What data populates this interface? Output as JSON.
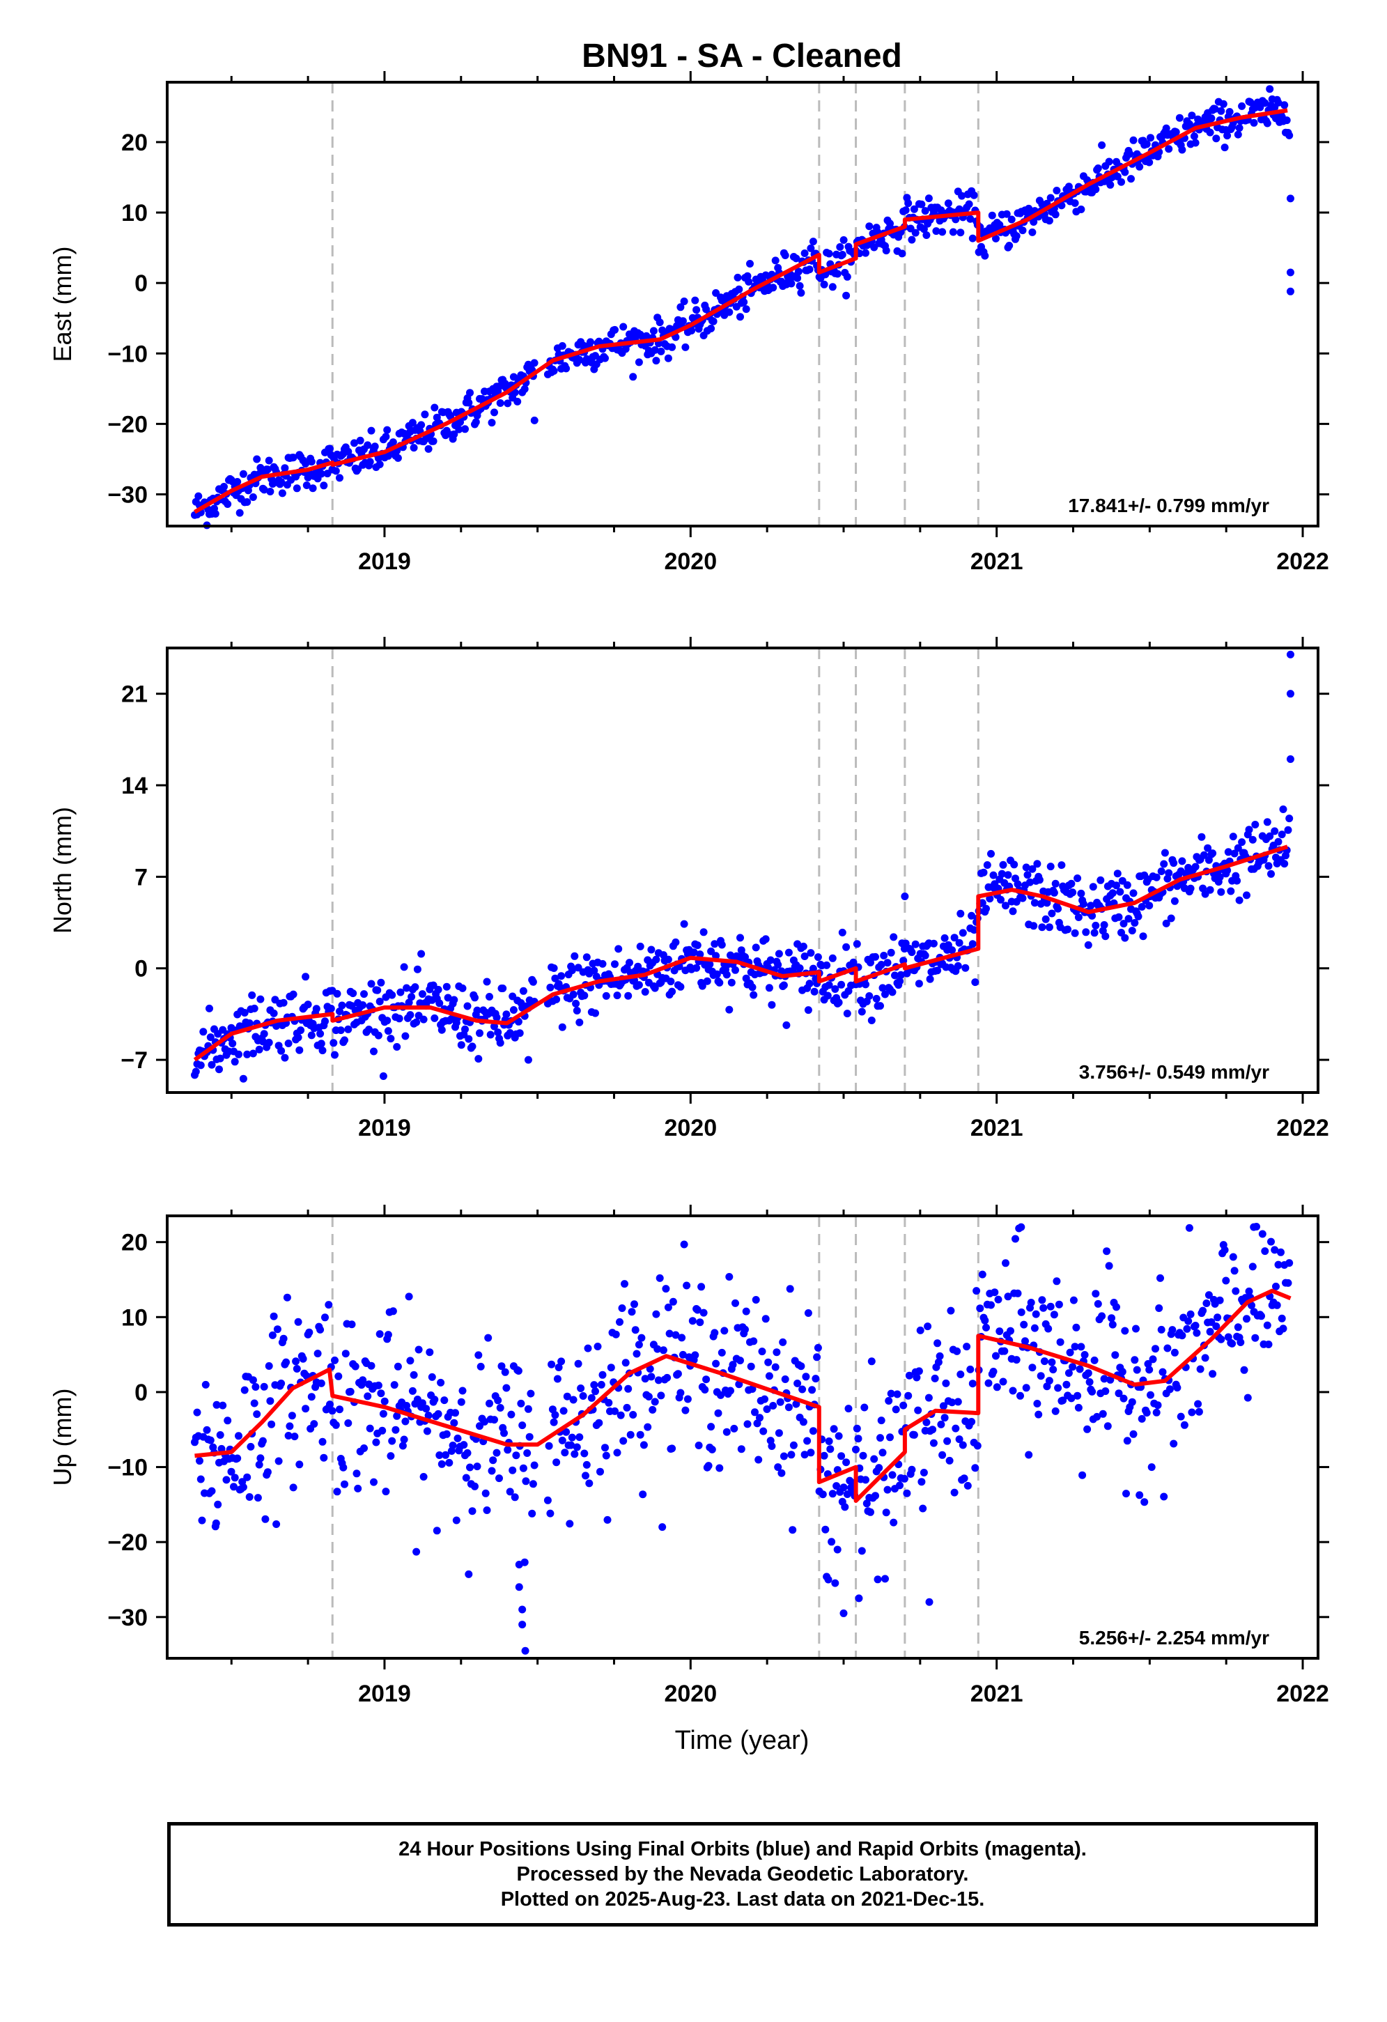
{
  "title": "BN91  - SA - Cleaned",
  "xlabel": "Time (year)",
  "footer": {
    "line1": "24 Hour Positions Using Final Orbits (blue) and Rapid Orbits (magenta).",
    "line2": "Processed by the Nevada Geodetic Laboratory.",
    "line3": "Plotted on 2025-Aug-23. Last data on 2021-Dec-15."
  },
  "colors": {
    "points": "#0000ff",
    "model": "#ff0000",
    "steps": "#bbbbbb"
  },
  "chart_data": [
    {
      "type": "scatter",
      "name": "east",
      "ylabel": "East (mm)",
      "rate_label": "17.841+/- 0.799 mm/yr",
      "xlim": [
        2018.29,
        2022.05
      ],
      "ylim": [
        -34.5,
        28.5
      ],
      "xticks": [
        2019,
        2020,
        2021,
        2022
      ],
      "yticks": [
        -30,
        -20,
        -10,
        0,
        10,
        20
      ],
      "model": [
        [
          2018.38,
          -32.5
        ],
        [
          2018.5,
          -29.5
        ],
        [
          2018.6,
          -27.5
        ],
        [
          2018.75,
          -26.5
        ],
        [
          2018.83,
          -25.5
        ],
        [
          2018.83,
          -25.8
        ],
        [
          2019.0,
          -24.0
        ],
        [
          2019.2,
          -20.0
        ],
        [
          2019.4,
          -15.5
        ],
        [
          2019.55,
          -11.0
        ],
        [
          2019.7,
          -9.0
        ],
        [
          2019.9,
          -8.0
        ],
        [
          2020.0,
          -6.0
        ],
        [
          2020.2,
          -1.0
        ],
        [
          2020.42,
          4.0
        ],
        [
          2020.42,
          1.5
        ],
        [
          2020.54,
          3.5
        ],
        [
          2020.54,
          5.5
        ],
        [
          2020.7,
          8.0
        ],
        [
          2020.7,
          9.0
        ],
        [
          2020.94,
          10.0
        ],
        [
          2020.94,
          6.0
        ],
        [
          2021.1,
          9.0
        ],
        [
          2021.3,
          14.0
        ],
        [
          2021.5,
          18.5
        ],
        [
          2021.65,
          22.0
        ],
        [
          2021.8,
          23.5
        ],
        [
          2021.95,
          24.5
        ]
      ],
      "outliers": [
        [
          2021.96,
          12.0
        ],
        [
          2021.96,
          1.5
        ],
        [
          2021.96,
          -1.2
        ],
        [
          2019.49,
          -19.5
        ]
      ],
      "scatter": 1.4
    },
    {
      "type": "scatter",
      "name": "north",
      "ylabel": "North (mm)",
      "rate_label": "3.756+/- 0.549 mm/yr",
      "xlim": [
        2018.29,
        2022.05
      ],
      "ylim": [
        -9.5,
        24.5
      ],
      "xticks": [
        2019,
        2020,
        2021,
        2022
      ],
      "yticks": [
        -7,
        0,
        7,
        14,
        21
      ],
      "model": [
        [
          2018.38,
          -7.0
        ],
        [
          2018.5,
          -5.0
        ],
        [
          2018.65,
          -4.0
        ],
        [
          2018.83,
          -3.5
        ],
        [
          2018.83,
          -4.0
        ],
        [
          2019.0,
          -3.0
        ],
        [
          2019.15,
          -3.0
        ],
        [
          2019.3,
          -4.0
        ],
        [
          2019.4,
          -4.2
        ],
        [
          2019.55,
          -2.0
        ],
        [
          2019.7,
          -1.0
        ],
        [
          2019.85,
          -0.5
        ],
        [
          2020.0,
          0.8
        ],
        [
          2020.15,
          0.5
        ],
        [
          2020.3,
          -0.6
        ],
        [
          2020.42,
          -0.3
        ],
        [
          2020.42,
          -1.0
        ],
        [
          2020.54,
          0.0
        ],
        [
          2020.54,
          -1.0
        ],
        [
          2020.7,
          0.3
        ],
        [
          2020.7,
          0.0
        ],
        [
          2020.94,
          1.5
        ],
        [
          2020.94,
          5.5
        ],
        [
          2021.05,
          6.0
        ],
        [
          2021.15,
          5.5
        ],
        [
          2021.3,
          4.3
        ],
        [
          2021.45,
          5.0
        ],
        [
          2021.6,
          6.8
        ],
        [
          2021.75,
          7.8
        ],
        [
          2021.95,
          9.3
        ]
      ],
      "outliers": [
        [
          2021.96,
          24.0
        ],
        [
          2021.96,
          21.0
        ],
        [
          2021.96,
          16.0
        ],
        [
          2020.7,
          5.5
        ],
        [
          2019.47,
          -7.0
        ]
      ],
      "scatter": 1.3
    },
    {
      "type": "scatter",
      "name": "up",
      "ylabel": "Up (mm)",
      "rate_label": "5.256+/- 2.254 mm/yr",
      "xlim": [
        2018.29,
        2022.05
      ],
      "ylim": [
        -35.5,
        23.5
      ],
      "xticks": [
        2019,
        2020,
        2021,
        2022
      ],
      "yticks": [
        -30,
        -20,
        -10,
        0,
        10,
        20
      ],
      "model": [
        [
          2018.38,
          -8.5
        ],
        [
          2018.5,
          -8.0
        ],
        [
          2018.6,
          -4.0
        ],
        [
          2018.7,
          0.5
        ],
        [
          2018.82,
          3.0
        ],
        [
          2018.83,
          -0.5
        ],
        [
          2019.0,
          -2.0
        ],
        [
          2019.2,
          -4.5
        ],
        [
          2019.4,
          -7.0
        ],
        [
          2019.5,
          -7.0
        ],
        [
          2019.65,
          -3.0
        ],
        [
          2019.8,
          2.5
        ],
        [
          2019.92,
          4.8
        ],
        [
          2020.1,
          2.5
        ],
        [
          2020.42,
          -2.0
        ],
        [
          2020.42,
          -12.0
        ],
        [
          2020.54,
          -10.0
        ],
        [
          2020.54,
          -14.5
        ],
        [
          2020.7,
          -8.0
        ],
        [
          2020.7,
          -5.0
        ],
        [
          2020.8,
          -2.5
        ],
        [
          2020.94,
          -2.8
        ],
        [
          2020.94,
          7.5
        ],
        [
          2021.1,
          6.0
        ],
        [
          2021.3,
          3.5
        ],
        [
          2021.45,
          1.0
        ],
        [
          2021.55,
          1.5
        ],
        [
          2021.7,
          7.0
        ],
        [
          2021.82,
          12.0
        ],
        [
          2021.9,
          13.5
        ],
        [
          2021.96,
          12.5
        ]
      ],
      "outliers": [
        [
          2019.44,
          -23.0
        ],
        [
          2019.44,
          -26.0
        ],
        [
          2019.45,
          -29.0
        ],
        [
          2019.45,
          -31.0
        ],
        [
          2019.46,
          -34.5
        ],
        [
          2020.5,
          -29.5
        ],
        [
          2020.55,
          -27.5
        ],
        [
          2020.78,
          -28.0
        ],
        [
          2021.08,
          22.0
        ],
        [
          2021.84,
          22.0
        ],
        [
          2018.45,
          -17.5
        ],
        [
          2020.45,
          -25.0
        ],
        [
          2020.48,
          -21.0
        ]
      ],
      "scatter": 6.0
    }
  ],
  "steps": [
    2018.83,
    2020.42,
    2020.54,
    2020.7,
    2020.94
  ]
}
